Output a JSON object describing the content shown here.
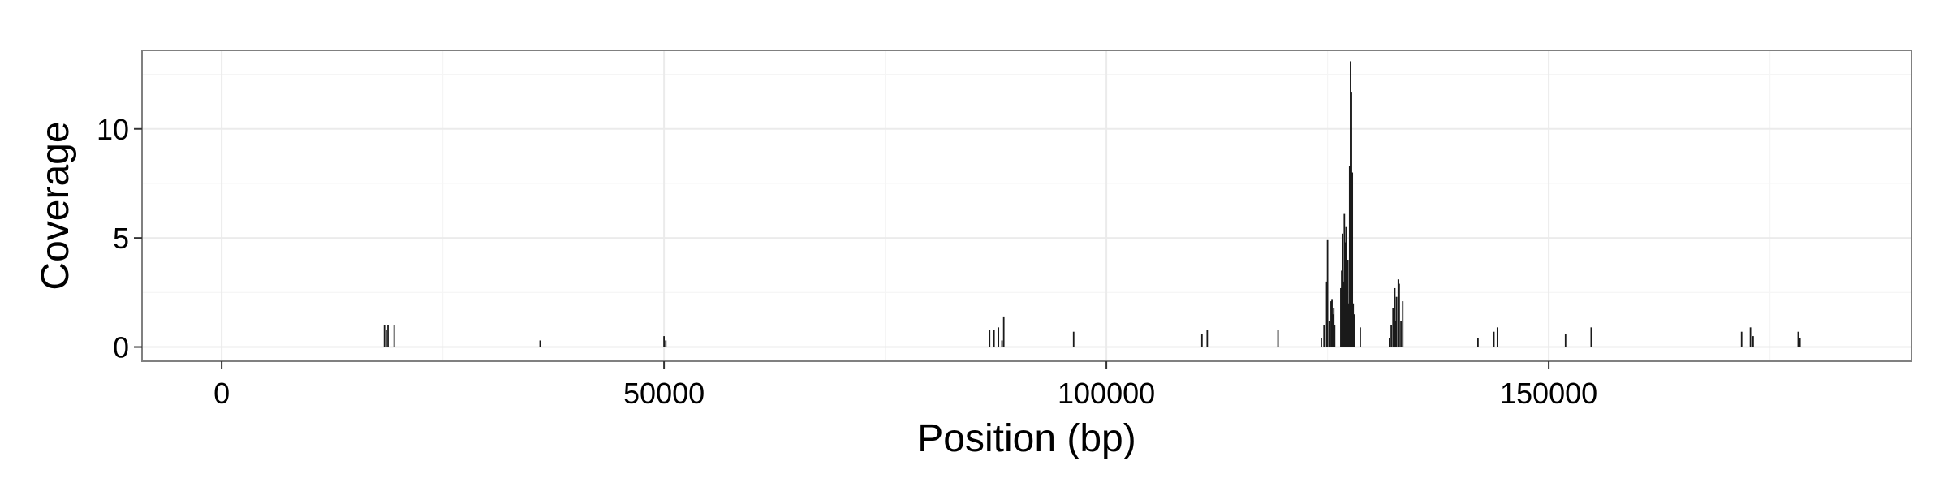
{
  "chart_data": {
    "type": "bar",
    "title": "",
    "xlabel": "Position (bp)",
    "ylabel": "Coverage",
    "xlim": [
      -9000,
      191000
    ],
    "ylim": [
      -0.65,
      13.6
    ],
    "grid": true,
    "legend": "none",
    "x_ticks": [
      0,
      50000,
      100000,
      150000
    ],
    "x_tick_labels": [
      "0",
      "50000",
      "100000",
      "150000"
    ],
    "y_ticks": [
      0,
      5,
      10
    ],
    "y_tick_labels": [
      "0",
      "5",
      "10"
    ],
    "points": [
      {
        "x": 18400,
        "y": 1.0
      },
      {
        "x": 18600,
        "y": 0.8
      },
      {
        "x": 18800,
        "y": 1.0
      },
      {
        "x": 19500,
        "y": 1.0
      },
      {
        "x": 36000,
        "y": 0.3
      },
      {
        "x": 50000,
        "y": 0.5
      },
      {
        "x": 50200,
        "y": 0.3
      },
      {
        "x": 86800,
        "y": 0.8
      },
      {
        "x": 87300,
        "y": 0.8
      },
      {
        "x": 87800,
        "y": 0.9
      },
      {
        "x": 88200,
        "y": 0.3
      },
      {
        "x": 88400,
        "y": 1.4
      },
      {
        "x": 96300,
        "y": 0.7
      },
      {
        "x": 110800,
        "y": 0.6
      },
      {
        "x": 111400,
        "y": 0.8
      },
      {
        "x": 119400,
        "y": 0.8
      },
      {
        "x": 124300,
        "y": 0.4
      },
      {
        "x": 124600,
        "y": 1.0
      },
      {
        "x": 124900,
        "y": 3.0
      },
      {
        "x": 125000,
        "y": 4.9
      },
      {
        "x": 125200,
        "y": 1.2
      },
      {
        "x": 125400,
        "y": 2.1
      },
      {
        "x": 125500,
        "y": 2.2
      },
      {
        "x": 125600,
        "y": 1.5
      },
      {
        "x": 125700,
        "y": 1.8
      },
      {
        "x": 125800,
        "y": 1.0
      },
      {
        "x": 126500,
        "y": 2.7
      },
      {
        "x": 126600,
        "y": 3.5
      },
      {
        "x": 126700,
        "y": 5.2
      },
      {
        "x": 126800,
        "y": 3.0
      },
      {
        "x": 126900,
        "y": 6.1
      },
      {
        "x": 127000,
        "y": 4.8
      },
      {
        "x": 127100,
        "y": 5.5
      },
      {
        "x": 127200,
        "y": 2.5
      },
      {
        "x": 127300,
        "y": 4.0
      },
      {
        "x": 127400,
        "y": 2.0
      },
      {
        "x": 127500,
        "y": 8.3
      },
      {
        "x": 127600,
        "y": 13.1
      },
      {
        "x": 127700,
        "y": 11.7
      },
      {
        "x": 127800,
        "y": 8.0
      },
      {
        "x": 127900,
        "y": 2.0
      },
      {
        "x": 128000,
        "y": 1.5
      },
      {
        "x": 128700,
        "y": 0.9
      },
      {
        "x": 132000,
        "y": 0.4
      },
      {
        "x": 132200,
        "y": 1.0
      },
      {
        "x": 132400,
        "y": 1.8
      },
      {
        "x": 132600,
        "y": 2.7
      },
      {
        "x": 132700,
        "y": 1.2
      },
      {
        "x": 132800,
        "y": 2.3
      },
      {
        "x": 133000,
        "y": 3.1
      },
      {
        "x": 133100,
        "y": 2.9
      },
      {
        "x": 133300,
        "y": 1.2
      },
      {
        "x": 133500,
        "y": 2.1
      },
      {
        "x": 142000,
        "y": 0.4
      },
      {
        "x": 143800,
        "y": 0.7
      },
      {
        "x": 144200,
        "y": 0.9
      },
      {
        "x": 151900,
        "y": 0.6
      },
      {
        "x": 154800,
        "y": 0.9
      },
      {
        "x": 171800,
        "y": 0.7
      },
      {
        "x": 172800,
        "y": 0.9
      },
      {
        "x": 173100,
        "y": 0.5
      },
      {
        "x": 178200,
        "y": 0.7
      },
      {
        "x": 178400,
        "y": 0.4
      }
    ]
  },
  "colors": {
    "panel_background": "#ffffff",
    "panel_border": "#808080",
    "grid_major": "#ebebeb",
    "grid_minor": "#f5f5f5",
    "bar": "#1a1a1a",
    "tick": "#333333"
  }
}
